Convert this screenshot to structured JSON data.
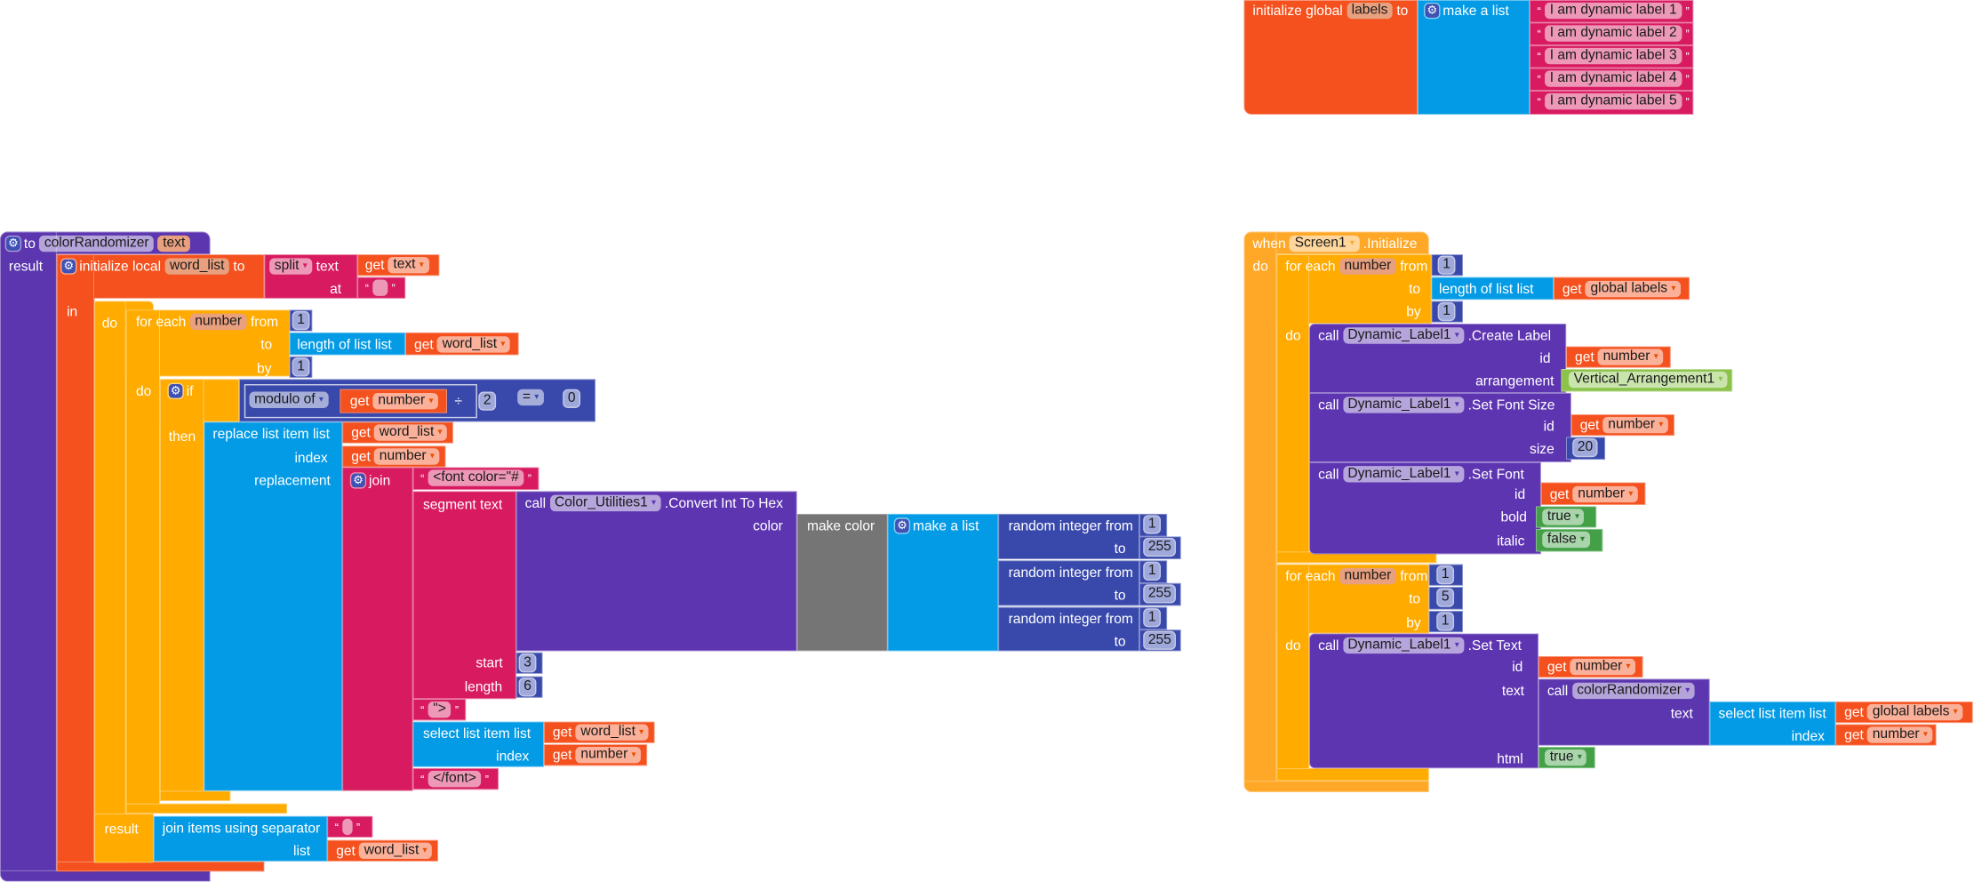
{
  "common": {
    "get": "get",
    "to": "to",
    "from": "from",
    "by": "by",
    "do": "do",
    "list": "list",
    "index": "index",
    "call": "call",
    "text": "text",
    "id": "id",
    "dropdown": "▾",
    "open_quote": "“",
    "close_quote": "”",
    "for_each": "for each",
    "length_of_list": "length of list",
    "select_list_item": "select list item",
    "random_integer_from": "random integer from",
    "make_a_list": "make a list",
    "gear": "⚙",
    "result": "result"
  },
  "colors": {
    "procedure": "#5b36ae",
    "variables": "#f4511e",
    "text": "#d81b60",
    "lists": "#039be5",
    "control": "#ffab00",
    "math": "#3949ab",
    "component": "#5e35b1",
    "colors": "#757575",
    "logic": "#43a047",
    "component_dropdown": "#8bc34a"
  },
  "procedure": {
    "keyword": "to",
    "name": "colorRandomizer",
    "param": "text",
    "init_local": {
      "label": "initialize local",
      "var": "word_list",
      "in": "in"
    },
    "split": {
      "op": "split",
      "at_label": "at",
      "get_var": "text",
      "separator": " "
    },
    "loop": {
      "var": "number",
      "from": "1",
      "by": "1",
      "get_var": "word_list"
    },
    "if": {
      "label": "if",
      "then": "then",
      "modulo": "modulo of",
      "get_var": "number",
      "divide": "÷",
      "divisor": "2",
      "compare": "=",
      "rhs": "0"
    },
    "replace": {
      "label": "replace list item  list",
      "replacement": "replacement",
      "list_var": "word_list",
      "index_var": "number"
    },
    "join": {
      "label": "join",
      "font_open": "<font color=\"#",
      "segment": {
        "label": "segment  text",
        "start_label": "start",
        "start": "3",
        "length_label": "length",
        "length": "6"
      },
      "convert": {
        "component": "Color_Utilities1",
        "method": ".Convert Int To Hex",
        "color_label": "color"
      },
      "make_color": "make color",
      "randoms": [
        {
          "from": "1",
          "to": "255"
        },
        {
          "from": "1",
          "to": "255"
        },
        {
          "from": "1",
          "to": "255"
        }
      ],
      "close_tag": "\">",
      "select_list_var": "word_list",
      "select_index_var": "number",
      "font_close": "</font>"
    },
    "join_items": {
      "label": "join items using separator",
      "separator": " ",
      "list_var": "word_list"
    }
  },
  "global": {
    "label": "initialize global",
    "var": "labels",
    "items": [
      "I am dynamic label 1",
      "I am dynamic label 2",
      "I am dynamic label 3",
      "I am dynamic label 4",
      "I am dynamic label 5"
    ]
  },
  "event": {
    "when": "when",
    "component": "Screen1",
    "event": ".Initialize",
    "loop1": {
      "var": "number",
      "from": "1",
      "by": "1",
      "list_var": "global labels"
    },
    "create_label": {
      "component": "Dynamic_Label1",
      "method": ".Create Label",
      "id_var": "number",
      "arrangement_label": "arrangement",
      "arrangement": "Vertical_Arrangement1"
    },
    "set_font_size": {
      "component": "Dynamic_Label1",
      "method": ".Set Font Size",
      "id_var": "number",
      "size_label": "size",
      "size": "20"
    },
    "set_font": {
      "component": "Dynamic_Label1",
      "method": ".Set Font",
      "id_var": "number",
      "bold_label": "bold",
      "bold": "true",
      "italic_label": "italic",
      "italic": "false"
    },
    "loop2": {
      "var": "number",
      "from": "1",
      "to": "5",
      "by": "1"
    },
    "set_text": {
      "component": "Dynamic_Label1",
      "method": ".Set Text",
      "id_var": "number",
      "proc": "colorRandomizer",
      "list_var": "global labels",
      "index_var": "number",
      "html_label": "html",
      "html": "true"
    }
  }
}
